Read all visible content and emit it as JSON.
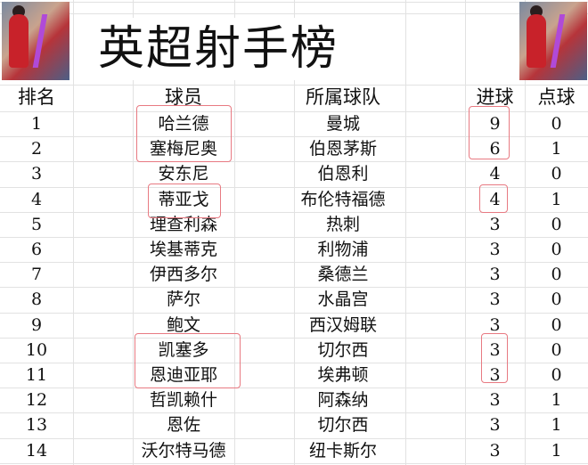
{
  "title": "英超射手榜",
  "headers": {
    "rank": "排名",
    "player": "球员",
    "team": "所属球队",
    "goals": "进球",
    "penalties": "点球"
  },
  "rows": [
    {
      "rank": "1",
      "player": "哈兰德",
      "team": "曼城",
      "goals": "9",
      "penalties": "0"
    },
    {
      "rank": "2",
      "player": "塞梅尼奥",
      "team": "伯恩茅斯",
      "goals": "6",
      "penalties": "1"
    },
    {
      "rank": "3",
      "player": "安东尼",
      "team": "伯恩利",
      "goals": "4",
      "penalties": "0"
    },
    {
      "rank": "4",
      "player": "蒂亚戈",
      "team": "布伦特福德",
      "goals": "4",
      "penalties": "1"
    },
    {
      "rank": "5",
      "player": "理查利森",
      "team": "热刺",
      "goals": "3",
      "penalties": "0"
    },
    {
      "rank": "6",
      "player": "埃基蒂克",
      "team": "利物浦",
      "goals": "3",
      "penalties": "0"
    },
    {
      "rank": "7",
      "player": "伊西多尔",
      "team": "桑德兰",
      "goals": "3",
      "penalties": "0"
    },
    {
      "rank": "8",
      "player": "萨尔",
      "team": "水晶宫",
      "goals": "3",
      "penalties": "0"
    },
    {
      "rank": "9",
      "player": "鲍文",
      "team": "西汉姆联",
      "goals": "3",
      "penalties": "0"
    },
    {
      "rank": "10",
      "player": "凯塞多",
      "team": "切尔西",
      "goals": "3",
      "penalties": "0"
    },
    {
      "rank": "11",
      "player": "恩迪亚耶",
      "team": "埃弗顿",
      "goals": "3",
      "penalties": "0"
    },
    {
      "rank": "12",
      "player": "哲凯赖什",
      "team": "阿森纳",
      "goals": "3",
      "penalties": "1"
    },
    {
      "rank": "13",
      "player": "恩佐",
      "team": "切尔西",
      "goals": "3",
      "penalties": "1"
    },
    {
      "rank": "14",
      "player": "沃尔特马德",
      "team": "纽卡斯尔",
      "goals": "3",
      "penalties": "1"
    }
  ],
  "colors": {
    "highlight_box": "#e87a82",
    "grid": "#e2e2e2"
  }
}
